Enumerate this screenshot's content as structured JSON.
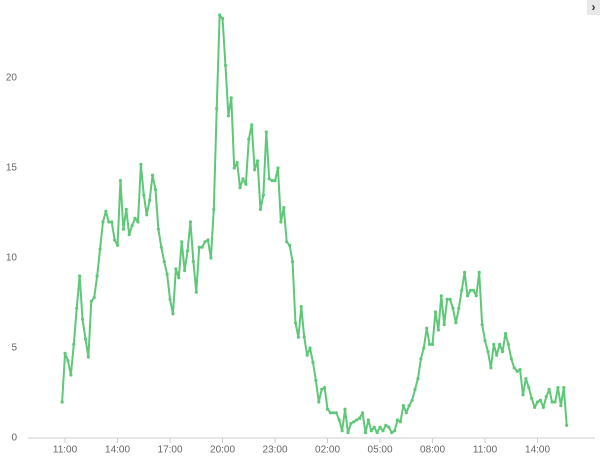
{
  "toggle_label": "›",
  "chart_data": {
    "type": "line",
    "color": "#5ec878",
    "x": [
      650,
      660,
      670,
      680,
      690,
      700,
      710,
      720,
      730,
      740,
      750,
      760,
      770,
      780,
      790,
      800,
      810,
      820,
      830,
      840,
      850,
      860,
      870,
      880,
      890,
      900,
      910,
      920,
      930,
      940,
      950,
      960,
      970,
      980,
      990,
      1000,
      1010,
      1020,
      1030,
      1040,
      1050,
      1060,
      1070,
      1080,
      1090,
      1100,
      1110,
      1120,
      1130,
      1140,
      1150,
      1160,
      1170,
      1180,
      1190,
      1200,
      1210,
      1220,
      1230,
      1240,
      1250,
      1260,
      1270,
      1280,
      1290,
      1300,
      1310,
      1320,
      1330,
      1340,
      1350,
      1360,
      1370,
      1380,
      1390,
      1400,
      1410,
      1420,
      1430,
      1440,
      1450,
      1460,
      1470,
      1480,
      1490,
      1500,
      1510,
      1520,
      1530,
      1540,
      1550,
      1560,
      1570,
      1580,
      1590,
      1600,
      1610,
      1620,
      1630,
      1640,
      1650,
      1660,
      1670,
      1680,
      1690,
      1700,
      1710,
      1720,
      1730,
      1740,
      1750,
      1760,
      1770,
      1780,
      1790,
      1800,
      1810,
      1820,
      1830,
      1840,
      1850,
      1860,
      1870,
      1880,
      1890,
      1900,
      1910,
      1920,
      1930,
      1940,
      1950,
      1960,
      1970,
      1980,
      1990,
      2000,
      2010,
      2020,
      2030,
      2040,
      2050,
      2060,
      2070,
      2080,
      2090,
      2100,
      2110,
      2120,
      2130,
      2140,
      2150,
      2160,
      2170,
      2180,
      2190,
      2200,
      2210,
      2220,
      2230,
      2240,
      2250,
      2260,
      2270,
      2280,
      2290,
      2300,
      2310,
      2320,
      2330,
      2340,
      2350,
      2360,
      2370,
      2380
    ],
    "values": [
      2.0,
      4.7,
      4.3,
      3.5,
      5.2,
      7.2,
      9.0,
      6.6,
      5.5,
      4.5,
      7.6,
      7.8,
      9.0,
      10.5,
      12.0,
      12.6,
      12.0,
      12.0,
      11.0,
      10.7,
      14.3,
      11.6,
      12.7,
      11.3,
      11.8,
      12.2,
      12.0,
      15.2,
      13.5,
      12.4,
      13.2,
      14.6,
      13.8,
      11.6,
      10.6,
      9.8,
      9.1,
      7.7,
      6.9,
      9.4,
      8.9,
      10.9,
      9.3,
      10.4,
      12.0,
      9.8,
      8.1,
      10.6,
      10.6,
      10.9,
      11.0,
      10.0,
      12.7,
      18.3,
      23.5,
      23.3,
      20.7,
      17.9,
      18.9,
      15.0,
      15.3,
      13.9,
      14.4,
      14.1,
      16.6,
      17.4,
      14.9,
      15.4,
      12.7,
      13.5,
      17.0,
      14.4,
      14.3,
      14.3,
      15.0,
      12.0,
      12.8,
      10.9,
      10.7,
      9.8,
      6.4,
      5.6,
      7.3,
      5.6,
      4.6,
      5.0,
      4.2,
      3.2,
      2.0,
      2.7,
      2.8,
      1.6,
      1.4,
      1.4,
      1.4,
      1.0,
      0.4,
      1.6,
      0.3,
      0.8,
      0.9,
      1.0,
      1.1,
      1.4,
      0.3,
      1.0,
      0.4,
      0.6,
      0.3,
      0.6,
      0.4,
      0.7,
      0.6,
      0.3,
      0.4,
      1.0,
      0.9,
      1.8,
      1.4,
      1.8,
      2.1,
      2.7,
      3.3,
      4.4,
      5.0,
      6.1,
      5.2,
      5.2,
      7.0,
      6.0,
      7.9,
      6.3,
      7.7,
      7.7,
      7.2,
      6.4,
      7.2,
      8.2,
      9.2,
      7.9,
      8.2,
      8.2,
      7.9,
      9.2,
      6.3,
      5.4,
      4.8,
      3.9,
      5.2,
      4.6,
      5.2,
      4.8,
      5.8,
      5.2,
      4.4,
      3.9,
      3.7,
      3.8,
      2.4,
      3.3,
      2.8,
      2.2,
      1.7,
      2.0,
      2.1,
      1.7,
      2.3,
      2.7,
      2.0,
      2.0,
      2.8,
      1.8,
      2.8,
      0.7
    ],
    "xlim": [
      533,
      2477
    ],
    "xticks": [
      {
        "value": 660,
        "label": "11:00"
      },
      {
        "value": 840,
        "label": "14:00"
      },
      {
        "value": 1020,
        "label": "17:00"
      },
      {
        "value": 1200,
        "label": "20:00"
      },
      {
        "value": 1380,
        "label": "23:00"
      },
      {
        "value": 1560,
        "label": "02:00"
      },
      {
        "value": 1740,
        "label": "05:00"
      },
      {
        "value": 1920,
        "label": "08:00"
      },
      {
        "value": 2100,
        "label": "11:00"
      },
      {
        "value": 2280,
        "label": "14:00"
      }
    ],
    "ylim": [
      0,
      24
    ],
    "yticks": [
      0,
      5,
      10,
      15,
      20
    ],
    "grid": false
  }
}
